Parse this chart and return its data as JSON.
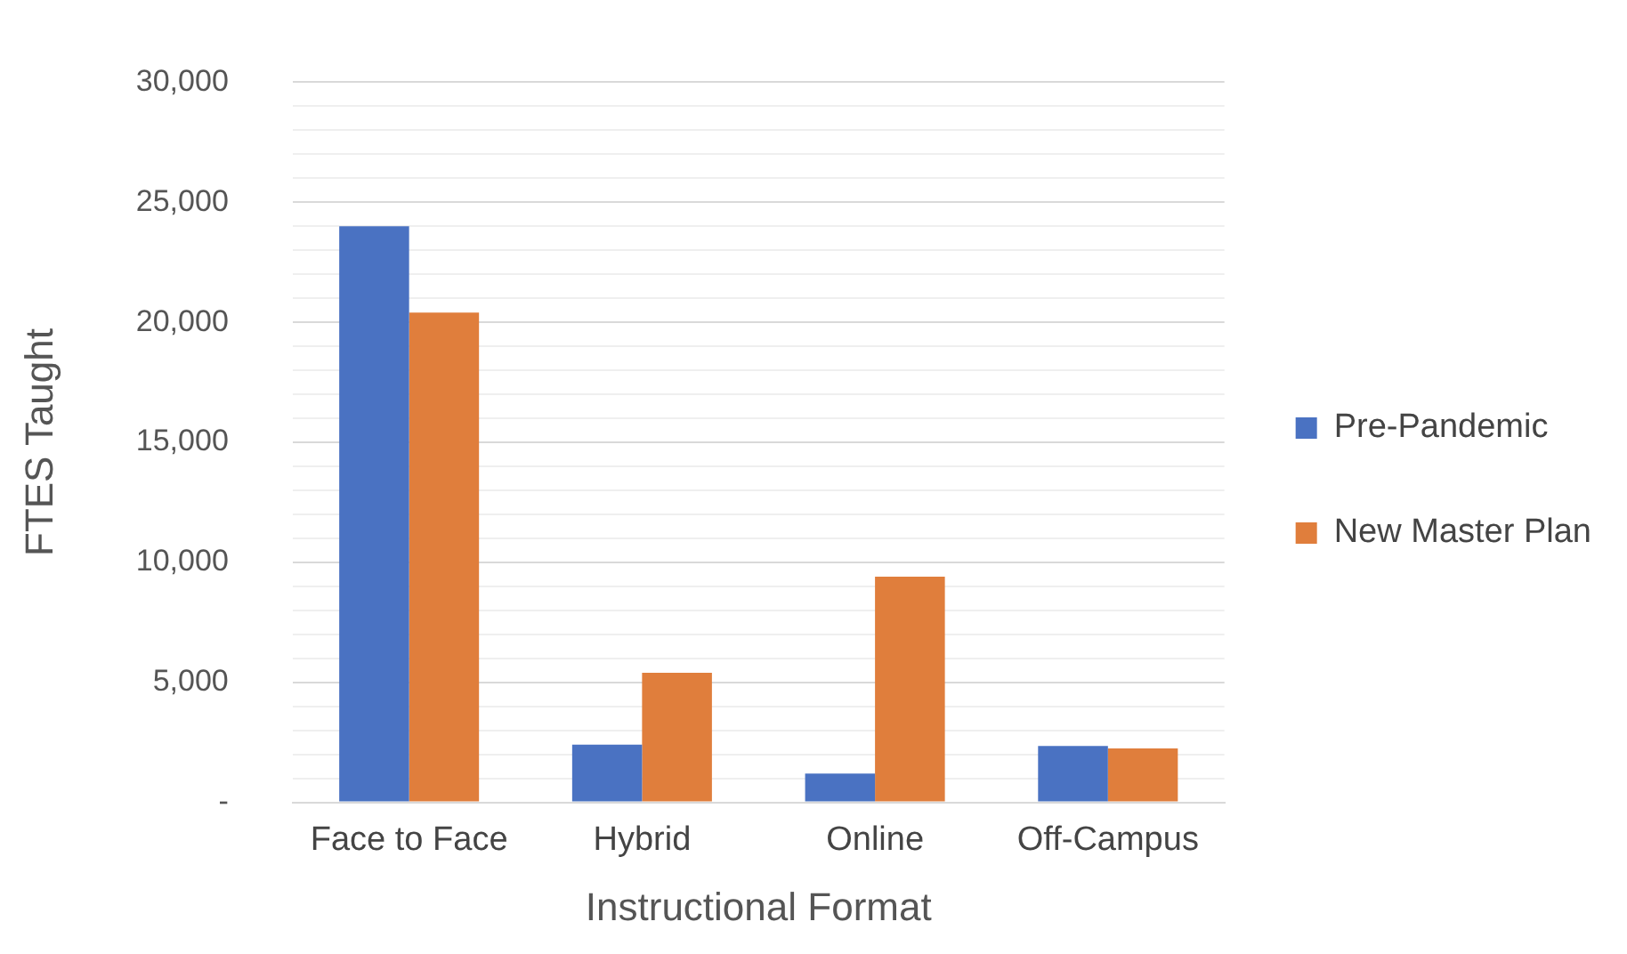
{
  "chart_data": {
    "type": "bar",
    "xlabel": "Instructional Format",
    "ylabel": "FTES Taught",
    "categories": [
      "Face to Face",
      "Hybrid",
      "Online",
      "Off-Campus"
    ],
    "series": [
      {
        "name": "Pre-Pandemic",
        "color": "#4a72c2",
        "values": [
          24000,
          2400,
          1200,
          2350
        ]
      },
      {
        "name": "New Master Plan",
        "color": "#e07e3c",
        "values": [
          20400,
          5400,
          9400,
          2250
        ]
      }
    ],
    "ylim": [
      0,
      30000
    ],
    "yticks": [
      {
        "value": 0,
        "label": "-"
      },
      {
        "value": 1000,
        "label": null
      },
      {
        "value": 2000,
        "label": null
      },
      {
        "value": 3000,
        "label": null
      },
      {
        "value": 4000,
        "label": null
      },
      {
        "value": 5000,
        "label": "5,000"
      },
      {
        "value": 6000,
        "label": null
      },
      {
        "value": 7000,
        "label": null
      },
      {
        "value": 8000,
        "label": null
      },
      {
        "value": 9000,
        "label": null
      },
      {
        "value": 10000,
        "label": "10,000"
      },
      {
        "value": 11000,
        "label": null
      },
      {
        "value": 12000,
        "label": null
      },
      {
        "value": 13000,
        "label": null
      },
      {
        "value": 14000,
        "label": null
      },
      {
        "value": 15000,
        "label": "15,000"
      },
      {
        "value": 16000,
        "label": null
      },
      {
        "value": 17000,
        "label": null
      },
      {
        "value": 18000,
        "label": null
      },
      {
        "value": 19000,
        "label": null
      },
      {
        "value": 20000,
        "label": "20,000"
      },
      {
        "value": 21000,
        "label": null
      },
      {
        "value": 22000,
        "label": null
      },
      {
        "value": 23000,
        "label": null
      },
      {
        "value": 24000,
        "label": null
      },
      {
        "value": 25000,
        "label": "25,000"
      },
      {
        "value": 26000,
        "label": null
      },
      {
        "value": 27000,
        "label": null
      },
      {
        "value": 28000,
        "label": null
      },
      {
        "value": 29000,
        "label": null
      },
      {
        "value": 30000,
        "label": "30,000"
      }
    ],
    "grid": "y",
    "legend": "right"
  }
}
